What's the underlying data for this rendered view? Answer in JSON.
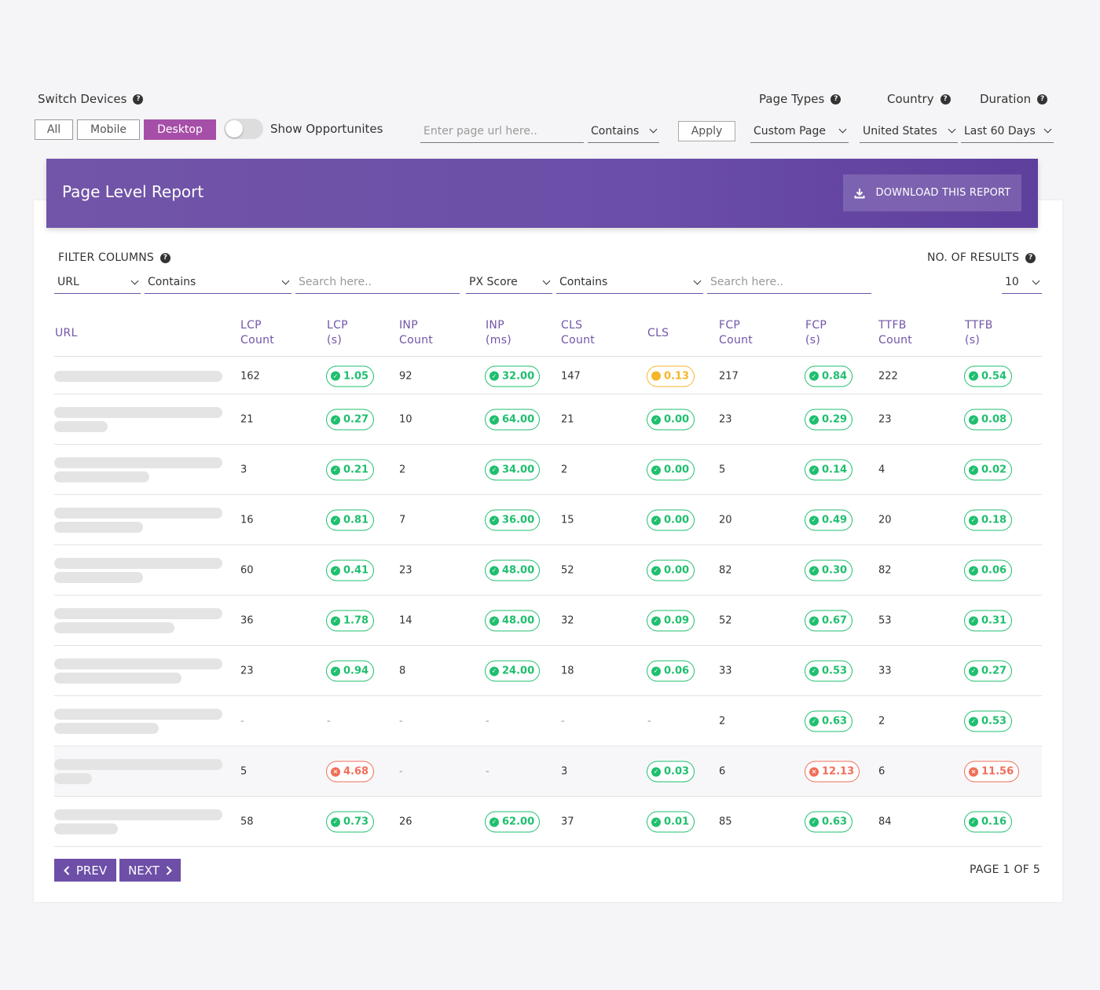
{
  "filters_top": {
    "switch_devices_label": "Switch Devices",
    "devices": [
      "All",
      "Mobile",
      "Desktop"
    ],
    "active_device": "Desktop",
    "show_opportunities_label": "Show Opportunites",
    "url_placeholder": "Enter page url here..",
    "match_mode": "Contains",
    "apply_label": "Apply",
    "page_types_label": "Page Types",
    "page_type_value": "Custom Page",
    "country_label": "Country",
    "country_value": "United States (",
    "duration_label": "Duration",
    "duration_value": "Last 60 Days"
  },
  "report": {
    "title": "Page Level Report",
    "download_label": "DOWNLOAD THIS REPORT"
  },
  "column_filters": {
    "label": "FILTER COLUMNS",
    "col1": "URL",
    "op1": "Contains",
    "search1_placeholder": "Search here..",
    "col2": "PX Score",
    "op2": "Contains",
    "search2_placeholder": "Search here..",
    "results_label": "NO. OF RESULTS",
    "results_value": "10"
  },
  "table": {
    "headers": [
      [
        "URL",
        ""
      ],
      [
        "LCP",
        "Count"
      ],
      [
        "LCP",
        "(s)"
      ],
      [
        "INP",
        "Count"
      ],
      [
        "INP",
        "(ms)"
      ],
      [
        "CLS",
        "Count"
      ],
      [
        "CLS",
        ""
      ],
      [
        "FCP",
        "Count"
      ],
      [
        "FCP",
        "(s)"
      ],
      [
        "TTFB",
        "Count"
      ],
      [
        "TTFB",
        "(s)"
      ]
    ],
    "rows": [
      {
        "lcp_count": "162",
        "lcp": [
          "1.05",
          "good"
        ],
        "inp_count": "92",
        "inp": [
          "32.00",
          "good"
        ],
        "cls_count": "147",
        "cls": [
          "0.13",
          "warn"
        ],
        "fcp_count": "217",
        "fcp": [
          "0.84",
          "good"
        ],
        "ttfb_count": "222",
        "ttfb": [
          "0.54",
          "good"
        ]
      },
      {
        "lcp_count": "21",
        "lcp": [
          "0.27",
          "good"
        ],
        "inp_count": "10",
        "inp": [
          "64.00",
          "good"
        ],
        "cls_count": "21",
        "cls": [
          "0.00",
          "good"
        ],
        "fcp_count": "23",
        "fcp": [
          "0.29",
          "good"
        ],
        "ttfb_count": "23",
        "ttfb": [
          "0.08",
          "good"
        ]
      },
      {
        "lcp_count": "3",
        "lcp": [
          "0.21",
          "good"
        ],
        "inp_count": "2",
        "inp": [
          "34.00",
          "good"
        ],
        "cls_count": "2",
        "cls": [
          "0.00",
          "good"
        ],
        "fcp_count": "5",
        "fcp": [
          "0.14",
          "good"
        ],
        "ttfb_count": "4",
        "ttfb": [
          "0.02",
          "good"
        ]
      },
      {
        "lcp_count": "16",
        "lcp": [
          "0.81",
          "good"
        ],
        "inp_count": "7",
        "inp": [
          "36.00",
          "good"
        ],
        "cls_count": "15",
        "cls": [
          "0.00",
          "good"
        ],
        "fcp_count": "20",
        "fcp": [
          "0.49",
          "good"
        ],
        "ttfb_count": "20",
        "ttfb": [
          "0.18",
          "good"
        ]
      },
      {
        "lcp_count": "60",
        "lcp": [
          "0.41",
          "good"
        ],
        "inp_count": "23",
        "inp": [
          "48.00",
          "good"
        ],
        "cls_count": "52",
        "cls": [
          "0.00",
          "good"
        ],
        "fcp_count": "82",
        "fcp": [
          "0.30",
          "good"
        ],
        "ttfb_count": "82",
        "ttfb": [
          "0.06",
          "good"
        ]
      },
      {
        "lcp_count": "36",
        "lcp": [
          "1.78",
          "good"
        ],
        "inp_count": "14",
        "inp": [
          "48.00",
          "good"
        ],
        "cls_count": "32",
        "cls": [
          "0.09",
          "good"
        ],
        "fcp_count": "52",
        "fcp": [
          "0.67",
          "good"
        ],
        "ttfb_count": "53",
        "ttfb": [
          "0.31",
          "good"
        ]
      },
      {
        "lcp_count": "23",
        "lcp": [
          "0.94",
          "good"
        ],
        "inp_count": "8",
        "inp": [
          "24.00",
          "good"
        ],
        "cls_count": "18",
        "cls": [
          "0.06",
          "good"
        ],
        "fcp_count": "33",
        "fcp": [
          "0.53",
          "good"
        ],
        "ttfb_count": "33",
        "ttfb": [
          "0.27",
          "good"
        ]
      },
      {
        "lcp_count": "-",
        "lcp": [
          "-",
          "none"
        ],
        "inp_count": "-",
        "inp": [
          "-",
          "none"
        ],
        "cls_count": "-",
        "cls": [
          "-",
          "none"
        ],
        "fcp_count": "2",
        "fcp": [
          "0.63",
          "good"
        ],
        "ttfb_count": "2",
        "ttfb": [
          "0.53",
          "good"
        ]
      },
      {
        "lcp_count": "5",
        "lcp": [
          "4.68",
          "bad"
        ],
        "inp_count": "-",
        "inp": [
          "-",
          "none"
        ],
        "cls_count": "3",
        "cls": [
          "0.03",
          "good"
        ],
        "fcp_count": "6",
        "fcp": [
          "12.13",
          "bad"
        ],
        "ttfb_count": "6",
        "ttfb": [
          "11.56",
          "bad"
        ]
      },
      {
        "lcp_count": "58",
        "lcp": [
          "0.73",
          "good"
        ],
        "inp_count": "26",
        "inp": [
          "62.00",
          "good"
        ],
        "cls_count": "37",
        "cls": [
          "0.01",
          "good"
        ],
        "fcp_count": "85",
        "fcp": [
          "0.63",
          "good"
        ],
        "ttfb_count": "84",
        "ttfb": [
          "0.16",
          "good"
        ]
      }
    ]
  },
  "pagination": {
    "prev_label": "PREV",
    "next_label": "NEXT",
    "page_info": "PAGE 1 OF 5"
  },
  "colors": {
    "accent": "#6d4fa7",
    "good": "#1fbf6e",
    "warn": "#f5b72a",
    "bad": "#f06e58"
  }
}
